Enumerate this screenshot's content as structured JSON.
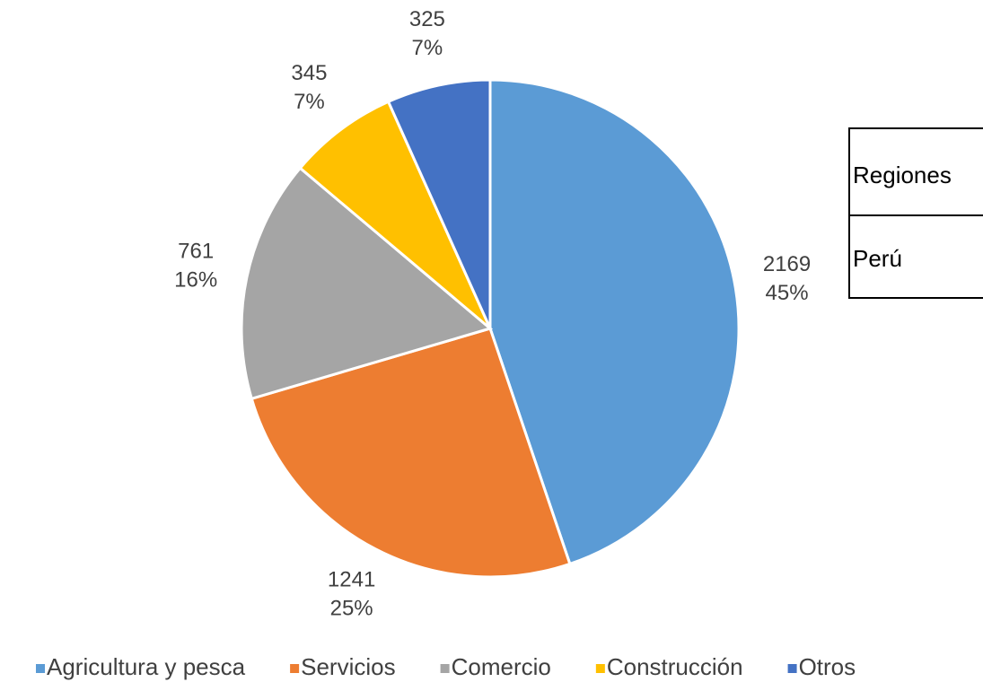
{
  "chart_data": {
    "type": "pie",
    "categories": [
      "Agricultura y pesca",
      "Servicios",
      "Comercio",
      "Construcción",
      "Otros"
    ],
    "values": [
      2169,
      1241,
      761,
      345,
      325
    ],
    "percent_labels": [
      "45%",
      "25%",
      "16%",
      "7%",
      "7%"
    ],
    "colors": [
      "#5b9bd5",
      "#ed7d31",
      "#a5a5a5",
      "#ffc000",
      "#4472c4"
    ],
    "legend": "bottom"
  },
  "table": {
    "rows": [
      [
        "Regiones"
      ],
      [
        "Perú"
      ]
    ]
  }
}
